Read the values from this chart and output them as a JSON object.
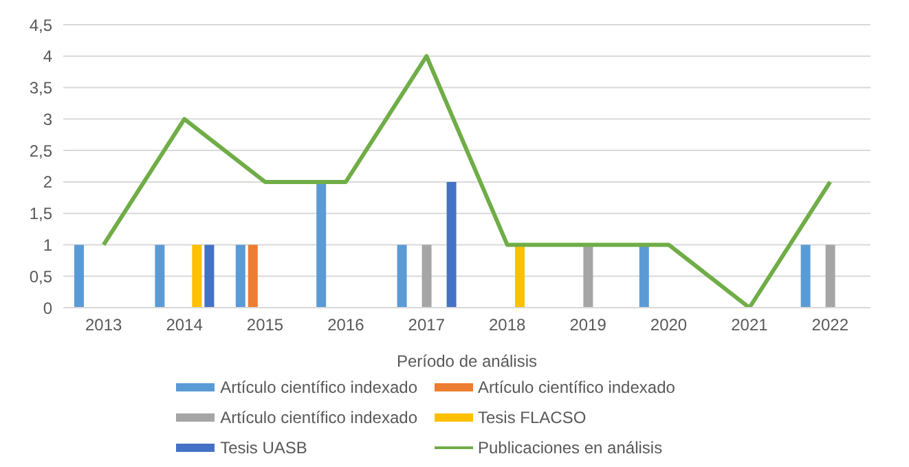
{
  "chart_data": {
    "type": "bar",
    "xlabel": "Período de análisis",
    "categories": [
      "2013",
      "2014",
      "2015",
      "2016",
      "2017",
      "2018",
      "2019",
      "2020",
      "2021",
      "2022"
    ],
    "series": [
      {
        "name": "Artículo científico indexado",
        "color": "#5b9bd5",
        "values": [
          1,
          1,
          1,
          2,
          1,
          null,
          null,
          1,
          null,
          1
        ]
      },
      {
        "name": "Artículo científico indexado",
        "color": "#ed7d31",
        "values": [
          null,
          null,
          1,
          null,
          null,
          null,
          null,
          null,
          null,
          null
        ]
      },
      {
        "name": "Artículo científico indexado",
        "color": "#a5a5a5",
        "values": [
          null,
          null,
          null,
          null,
          1,
          null,
          1,
          null,
          null,
          1
        ]
      },
      {
        "name": "Tesis FLACSO",
        "color": "#ffc000",
        "values": [
          null,
          1,
          null,
          null,
          null,
          1,
          null,
          null,
          null,
          null
        ]
      },
      {
        "name": "Tesis UASB",
        "color": "#4472c4",
        "values": [
          null,
          1,
          null,
          null,
          2,
          null,
          null,
          null,
          null,
          null
        ]
      },
      {
        "name": "Publicaciones en análisis",
        "type": "line",
        "color": "#70ad47",
        "values": [
          1,
          3,
          2,
          2,
          4,
          1,
          1,
          1,
          0,
          2
        ]
      }
    ],
    "ylim": [
      0,
      4.5
    ],
    "yticks": [
      0,
      {
        "value": 0.5,
        "label": "0,5"
      },
      1,
      {
        "value": 1.5,
        "label": "1,5"
      },
      2,
      {
        "value": 2.5,
        "label": "2,5"
      },
      3,
      {
        "value": 3.5,
        "label": "3,5"
      },
      4,
      {
        "value": 4.5,
        "label": "4,5"
      }
    ],
    "grid": "y",
    "legend": "bottom",
    "marker": "none",
    "line_style": "solid"
  }
}
